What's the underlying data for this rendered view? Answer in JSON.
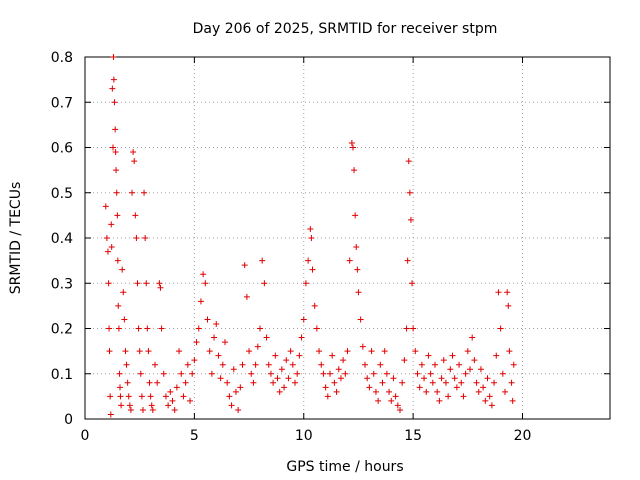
{
  "chart_data": {
    "type": "scatter",
    "title": "Day 206 of 2025, SRMTID for receiver stpm",
    "xlabel": "GPS time / hours",
    "ylabel": "SRMTID / TECUs",
    "xlim": [
      0,
      24
    ],
    "ylim": [
      0,
      0.8
    ],
    "xticks": [
      0,
      5,
      10,
      15,
      20
    ],
    "yticks": [
      0,
      0.1,
      0.2,
      0.3,
      0.4,
      0.5,
      0.6,
      0.7,
      0.8
    ],
    "xtick_labels": [
      "0",
      "5",
      "10",
      "15",
      "20"
    ],
    "ytick_labels": [
      "0",
      "0.1",
      "0.2",
      "0.3",
      "0.4",
      "0.5",
      "0.6",
      "0.7",
      "0.8"
    ],
    "grid": true,
    "marker": "+",
    "color": "#e00000",
    "series": [
      {
        "name": "SRMTID",
        "points": [
          [
            0.95,
            0.47
          ],
          [
            1.0,
            0.4
          ],
          [
            1.05,
            0.37
          ],
          [
            1.08,
            0.3
          ],
          [
            1.1,
            0.2
          ],
          [
            1.12,
            0.15
          ],
          [
            1.15,
            0.05
          ],
          [
            1.18,
            0.01
          ],
          [
            1.2,
            0.43
          ],
          [
            1.22,
            0.38
          ],
          [
            1.25,
            0.73
          ],
          [
            1.28,
            0.6
          ],
          [
            1.3,
            0.8
          ],
          [
            1.32,
            0.75
          ],
          [
            1.35,
            0.7
          ],
          [
            1.38,
            0.64
          ],
          [
            1.4,
            0.59
          ],
          [
            1.42,
            0.55
          ],
          [
            1.45,
            0.5
          ],
          [
            1.48,
            0.45
          ],
          [
            1.5,
            0.35
          ],
          [
            1.52,
            0.25
          ],
          [
            1.55,
            0.2
          ],
          [
            1.58,
            0.1
          ],
          [
            1.6,
            0.07
          ],
          [
            1.62,
            0.05
          ],
          [
            1.65,
            0.03
          ],
          [
            1.7,
            0.33
          ],
          [
            1.75,
            0.28
          ],
          [
            1.8,
            0.22
          ],
          [
            1.85,
            0.15
          ],
          [
            1.9,
            0.12
          ],
          [
            1.95,
            0.08
          ],
          [
            2.0,
            0.05
          ],
          [
            2.05,
            0.03
          ],
          [
            2.1,
            0.02
          ],
          [
            2.15,
            0.5
          ],
          [
            2.2,
            0.59
          ],
          [
            2.25,
            0.57
          ],
          [
            2.3,
            0.45
          ],
          [
            2.35,
            0.4
          ],
          [
            2.4,
            0.3
          ],
          [
            2.45,
            0.2
          ],
          [
            2.5,
            0.15
          ],
          [
            2.55,
            0.1
          ],
          [
            2.6,
            0.05
          ],
          [
            2.65,
            0.02
          ],
          [
            2.7,
            0.5
          ],
          [
            2.75,
            0.4
          ],
          [
            2.8,
            0.3
          ],
          [
            2.85,
            0.2
          ],
          [
            2.9,
            0.15
          ],
          [
            2.95,
            0.08
          ],
          [
            3.0,
            0.05
          ],
          [
            3.05,
            0.03
          ],
          [
            3.1,
            0.02
          ],
          [
            3.2,
            0.12
          ],
          [
            3.3,
            0.08
          ],
          [
            3.4,
            0.3
          ],
          [
            3.45,
            0.29
          ],
          [
            3.5,
            0.2
          ],
          [
            3.6,
            0.1
          ],
          [
            3.7,
            0.05
          ],
          [
            3.8,
            0.03
          ],
          [
            3.9,
            0.06
          ],
          [
            4.0,
            0.04
          ],
          [
            4.1,
            0.02
          ],
          [
            4.2,
            0.07
          ],
          [
            4.3,
            0.15
          ],
          [
            4.4,
            0.1
          ],
          [
            4.5,
            0.05
          ],
          [
            4.6,
            0.08
          ],
          [
            4.7,
            0.12
          ],
          [
            4.8,
            0.04
          ],
          [
            4.9,
            0.1
          ],
          [
            5.0,
            0.13
          ],
          [
            5.1,
            0.17
          ],
          [
            5.2,
            0.2
          ],
          [
            5.3,
            0.26
          ],
          [
            5.4,
            0.32
          ],
          [
            5.5,
            0.3
          ],
          [
            5.6,
            0.22
          ],
          [
            5.7,
            0.15
          ],
          [
            5.8,
            0.1
          ],
          [
            5.9,
            0.18
          ],
          [
            6.0,
            0.21
          ],
          [
            6.1,
            0.14
          ],
          [
            6.2,
            0.09
          ],
          [
            6.3,
            0.12
          ],
          [
            6.4,
            0.17
          ],
          [
            6.5,
            0.08
          ],
          [
            6.6,
            0.05
          ],
          [
            6.7,
            0.03
          ],
          [
            6.8,
            0.11
          ],
          [
            6.9,
            0.06
          ],
          [
            7.0,
            0.02
          ],
          [
            7.1,
            0.07
          ],
          [
            7.2,
            0.12
          ],
          [
            7.3,
            0.34
          ],
          [
            7.4,
            0.27
          ],
          [
            7.5,
            0.15
          ],
          [
            7.6,
            0.1
          ],
          [
            7.7,
            0.08
          ],
          [
            7.8,
            0.12
          ],
          [
            7.9,
            0.16
          ],
          [
            8.0,
            0.2
          ],
          [
            8.1,
            0.35
          ],
          [
            8.2,
            0.3
          ],
          [
            8.3,
            0.18
          ],
          [
            8.4,
            0.12
          ],
          [
            8.5,
            0.1
          ],
          [
            8.6,
            0.08
          ],
          [
            8.7,
            0.14
          ],
          [
            8.8,
            0.09
          ],
          [
            8.9,
            0.06
          ],
          [
            9.0,
            0.11
          ],
          [
            9.1,
            0.07
          ],
          [
            9.2,
            0.13
          ],
          [
            9.3,
            0.09
          ],
          [
            9.4,
            0.15
          ],
          [
            9.5,
            0.12
          ],
          [
            9.6,
            0.08
          ],
          [
            9.7,
            0.1
          ],
          [
            9.8,
            0.14
          ],
          [
            9.9,
            0.18
          ],
          [
            10.0,
            0.22
          ],
          [
            10.1,
            0.3
          ],
          [
            10.2,
            0.35
          ],
          [
            10.3,
            0.42
          ],
          [
            10.35,
            0.4
          ],
          [
            10.4,
            0.33
          ],
          [
            10.5,
            0.25
          ],
          [
            10.6,
            0.2
          ],
          [
            10.7,
            0.15
          ],
          [
            10.8,
            0.12
          ],
          [
            10.9,
            0.1
          ],
          [
            11.0,
            0.07
          ],
          [
            11.1,
            0.05
          ],
          [
            11.2,
            0.1
          ],
          [
            11.3,
            0.14
          ],
          [
            11.4,
            0.08
          ],
          [
            11.5,
            0.06
          ],
          [
            11.6,
            0.11
          ],
          [
            11.7,
            0.09
          ],
          [
            11.8,
            0.13
          ],
          [
            11.9,
            0.1
          ],
          [
            12.0,
            0.15
          ],
          [
            12.1,
            0.35
          ],
          [
            12.2,
            0.61
          ],
          [
            12.25,
            0.6
          ],
          [
            12.3,
            0.55
          ],
          [
            12.35,
            0.45
          ],
          [
            12.4,
            0.38
          ],
          [
            12.45,
            0.33
          ],
          [
            12.5,
            0.28
          ],
          [
            12.6,
            0.22
          ],
          [
            12.7,
            0.16
          ],
          [
            12.8,
            0.12
          ],
          [
            12.9,
            0.09
          ],
          [
            13.0,
            0.07
          ],
          [
            13.1,
            0.15
          ],
          [
            13.2,
            0.1
          ],
          [
            13.3,
            0.06
          ],
          [
            13.4,
            0.04
          ],
          [
            13.5,
            0.12
          ],
          [
            13.6,
            0.08
          ],
          [
            13.7,
            0.15
          ],
          [
            13.8,
            0.1
          ],
          [
            13.9,
            0.06
          ],
          [
            14.0,
            0.04
          ],
          [
            14.1,
            0.09
          ],
          [
            14.2,
            0.05
          ],
          [
            14.3,
            0.03
          ],
          [
            14.4,
            0.02
          ],
          [
            14.5,
            0.08
          ],
          [
            14.6,
            0.13
          ],
          [
            14.7,
            0.2
          ],
          [
            14.75,
            0.35
          ],
          [
            14.8,
            0.57
          ],
          [
            14.85,
            0.5
          ],
          [
            14.9,
            0.44
          ],
          [
            14.95,
            0.3
          ],
          [
            15.0,
            0.2
          ],
          [
            15.1,
            0.15
          ],
          [
            15.2,
            0.1
          ],
          [
            15.3,
            0.07
          ],
          [
            15.4,
            0.12
          ],
          [
            15.5,
            0.09
          ],
          [
            15.6,
            0.06
          ],
          [
            15.7,
            0.14
          ],
          [
            15.8,
            0.1
          ],
          [
            15.9,
            0.08
          ],
          [
            16.0,
            0.12
          ],
          [
            16.1,
            0.06
          ],
          [
            16.2,
            0.04
          ],
          [
            16.3,
            0.09
          ],
          [
            16.4,
            0.13
          ],
          [
            16.5,
            0.08
          ],
          [
            16.6,
            0.05
          ],
          [
            16.7,
            0.11
          ],
          [
            16.8,
            0.14
          ],
          [
            16.9,
            0.09
          ],
          [
            17.0,
            0.07
          ],
          [
            17.1,
            0.12
          ],
          [
            17.2,
            0.08
          ],
          [
            17.3,
            0.05
          ],
          [
            17.4,
            0.1
          ],
          [
            17.5,
            0.15
          ],
          [
            17.6,
            0.11
          ],
          [
            17.7,
            0.18
          ],
          [
            17.8,
            0.13
          ],
          [
            17.9,
            0.08
          ],
          [
            18.0,
            0.06
          ],
          [
            18.1,
            0.11
          ],
          [
            18.2,
            0.07
          ],
          [
            18.3,
            0.04
          ],
          [
            18.4,
            0.09
          ],
          [
            18.5,
            0.05
          ],
          [
            18.6,
            0.03
          ],
          [
            18.7,
            0.08
          ],
          [
            18.8,
            0.14
          ],
          [
            18.9,
            0.28
          ],
          [
            19.0,
            0.2
          ],
          [
            19.1,
            0.1
          ],
          [
            19.2,
            0.06
          ],
          [
            19.3,
            0.28
          ],
          [
            19.35,
            0.25
          ],
          [
            19.4,
            0.15
          ],
          [
            19.5,
            0.08
          ],
          [
            19.55,
            0.04
          ],
          [
            19.6,
            0.12
          ]
        ]
      }
    ]
  }
}
